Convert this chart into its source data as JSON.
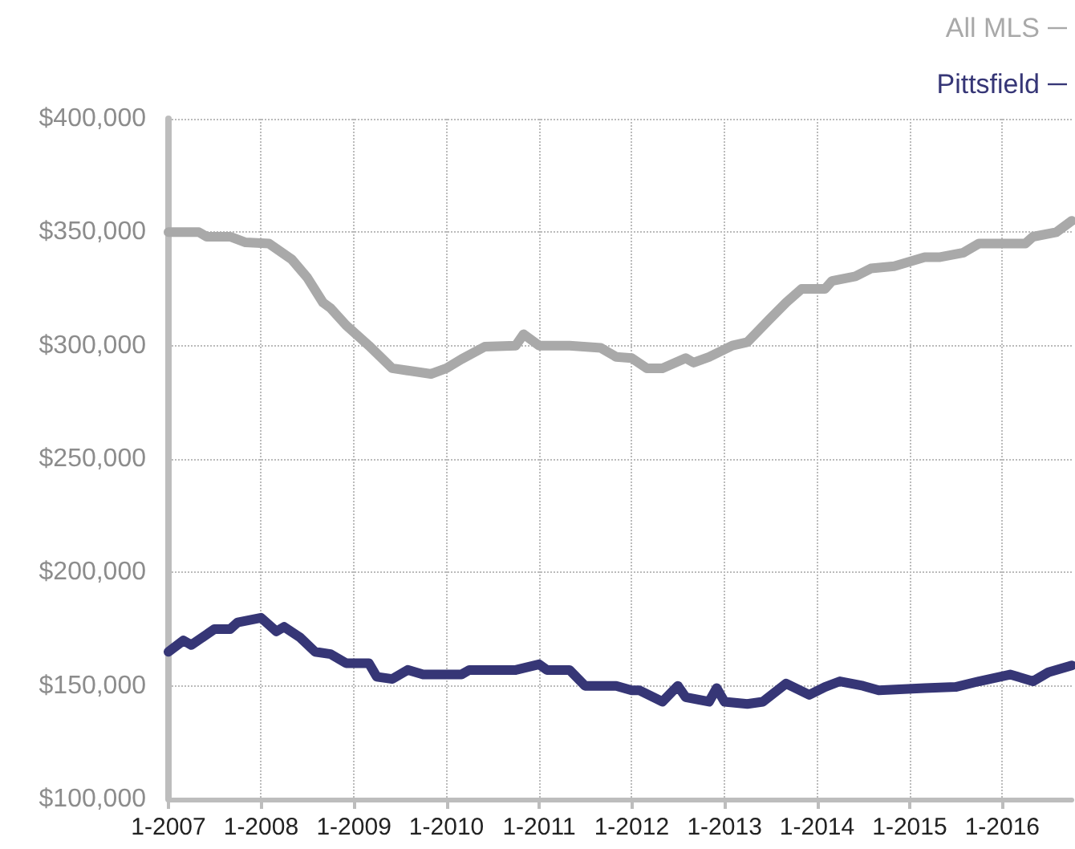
{
  "chart_data": {
    "type": "line",
    "legend": "top right",
    "grid": true,
    "line_style": "solid",
    "marker": "none",
    "xlim": [
      "2007-01",
      "2016-10"
    ],
    "xticks": [
      {
        "value": "2007-01",
        "label": "1-2007"
      },
      {
        "value": "2008-01",
        "label": "1-2008"
      },
      {
        "value": "2009-01",
        "label": "1-2009"
      },
      {
        "value": "2010-01",
        "label": "1-2010"
      },
      {
        "value": "2011-01",
        "label": "1-2011"
      },
      {
        "value": "2012-01",
        "label": "1-2012"
      },
      {
        "value": "2013-01",
        "label": "1-2013"
      },
      {
        "value": "2014-01",
        "label": "1-2014"
      },
      {
        "value": "2015-01",
        "label": "1-2015"
      },
      {
        "value": "2016-01",
        "label": "1-2016"
      }
    ],
    "ylim": [
      100000,
      400000
    ],
    "yticks": [
      {
        "value": 100000,
        "label": "$100,000"
      },
      {
        "value": 150000,
        "label": "$150,000"
      },
      {
        "value": 200000,
        "label": "$200,000"
      },
      {
        "value": 250000,
        "label": "$250,000"
      },
      {
        "value": 300000,
        "label": "$300,000"
      },
      {
        "value": 350000,
        "label": "$350,000"
      },
      {
        "value": 400000,
        "label": "$400,000"
      }
    ],
    "series": [
      {
        "name": "All MLS",
        "color": "#a9a9a9",
        "x": [
          "2007-01",
          "2007-05",
          "2007-06",
          "2007-09",
          "2007-11",
          "2008-02",
          "2008-05",
          "2008-07",
          "2008-09",
          "2008-10",
          "2008-12",
          "2009-03",
          "2009-06",
          "2009-08",
          "2009-11",
          "2010-01",
          "2010-03",
          "2010-06",
          "2010-10",
          "2010-11",
          "2011-01",
          "2011-05",
          "2011-09",
          "2011-11",
          "2012-01",
          "2012-03",
          "2012-05",
          "2012-08",
          "2012-09",
          "2012-11",
          "2013-02",
          "2013-04",
          "2013-07",
          "2013-09",
          "2013-11",
          "2014-02",
          "2014-03",
          "2014-06",
          "2014-08",
          "2014-11",
          "2015-03",
          "2015-05",
          "2015-08",
          "2015-10",
          "2016-04",
          "2016-05",
          "2016-08",
          "2016-10"
        ],
        "values": [
          350000,
          350000,
          348000,
          348000,
          345500,
          345000,
          338000,
          330000,
          319000,
          316500,
          309000,
          300000,
          290000,
          289000,
          287500,
          290000,
          294000,
          299500,
          300000,
          305000,
          300000,
          300000,
          299000,
          295000,
          294500,
          290000,
          290000,
          294500,
          292500,
          295000,
          300000,
          301500,
          312000,
          319000,
          325000,
          325000,
          328500,
          330500,
          334000,
          335000,
          339000,
          339000,
          341000,
          345000,
          345000,
          348000,
          350000,
          355000
        ]
      },
      {
        "name": "Pittsfield",
        "color": "#363676",
        "x": [
          "2007-01",
          "2007-03",
          "2007-04",
          "2007-07",
          "2007-09",
          "2007-10",
          "2008-01",
          "2008-03",
          "2008-04",
          "2008-06",
          "2008-08",
          "2008-10",
          "2008-12",
          "2009-03",
          "2009-04",
          "2009-06",
          "2009-08",
          "2009-10",
          "2010-03",
          "2010-04",
          "2010-10",
          "2011-01",
          "2011-02",
          "2011-05",
          "2011-07",
          "2011-11",
          "2012-01",
          "2012-02",
          "2012-05",
          "2012-07",
          "2012-08",
          "2012-11",
          "2012-12",
          "2013-01",
          "2013-04",
          "2013-06",
          "2013-09",
          "2013-12",
          "2014-02",
          "2014-04",
          "2014-07",
          "2014-09",
          "2015-03",
          "2015-07",
          "2015-10",
          "2016-02",
          "2016-05",
          "2016-07",
          "2016-10"
        ],
        "values": [
          165000,
          170000,
          168000,
          175000,
          175000,
          178000,
          180000,
          174000,
          176000,
          171500,
          165000,
          164000,
          160000,
          160000,
          154000,
          153000,
          157000,
          155000,
          155000,
          157000,
          157000,
          159500,
          157000,
          157000,
          150000,
          150000,
          148000,
          148000,
          143000,
          150000,
          145000,
          143000,
          149000,
          143000,
          142000,
          143000,
          151000,
          146000,
          149500,
          152000,
          150000,
          148000,
          149000,
          149500,
          152000,
          155000,
          152000,
          156000,
          159000
        ]
      }
    ]
  }
}
